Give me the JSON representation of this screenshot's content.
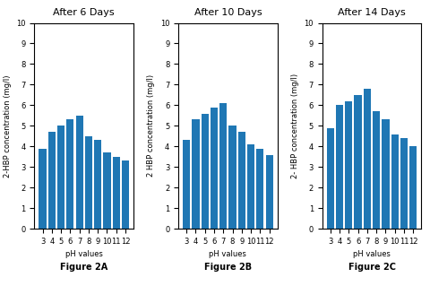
{
  "chart_data": [
    {
      "type": "bar",
      "title": "After 6 Days",
      "xlabel": "pH values",
      "ylabel": "2-HBP concentration (mg/l)",
      "categories": [
        "3",
        "4",
        "5",
        "6",
        "7",
        "8",
        "9",
        "10",
        "11",
        "12"
      ],
      "values": [
        3.9,
        4.7,
        5.0,
        5.3,
        5.5,
        4.5,
        4.3,
        3.7,
        3.5,
        3.3
      ],
      "ylim": [
        0,
        10
      ],
      "yticks": [
        0,
        1,
        2,
        3,
        4,
        5,
        6,
        7,
        8,
        9,
        10
      ],
      "annotation": "Figure 2A"
    },
    {
      "type": "bar",
      "title": "After 10 Days",
      "xlabel": "pH values",
      "ylabel": "2 HBP concentration (mg/l)",
      "categories": [
        "3",
        "4",
        "5",
        "6",
        "7",
        "8",
        "9",
        "10",
        "11",
        "12"
      ],
      "values": [
        4.3,
        5.3,
        5.6,
        5.9,
        6.1,
        5.0,
        4.7,
        4.1,
        3.9,
        3.6
      ],
      "ylim": [
        0,
        10
      ],
      "yticks": [
        0,
        1,
        2,
        3,
        4,
        5,
        6,
        7,
        8,
        9,
        10
      ],
      "annotation": "Figure 2B"
    },
    {
      "type": "bar",
      "title": "After 14 Days",
      "xlabel": "pH values",
      "ylabel": "2- HBP concentration (mg/l)",
      "categories": [
        "3",
        "4",
        "5",
        "6",
        "7",
        "8",
        "9",
        "10",
        "11",
        "12"
      ],
      "values": [
        4.9,
        6.0,
        6.2,
        6.5,
        6.8,
        5.7,
        5.3,
        4.6,
        4.4,
        4.0
      ],
      "ylim": [
        0,
        10
      ],
      "yticks": [
        0,
        1,
        2,
        3,
        4,
        5,
        6,
        7,
        8,
        9,
        10
      ],
      "annotation": "Figure 2C"
    }
  ]
}
